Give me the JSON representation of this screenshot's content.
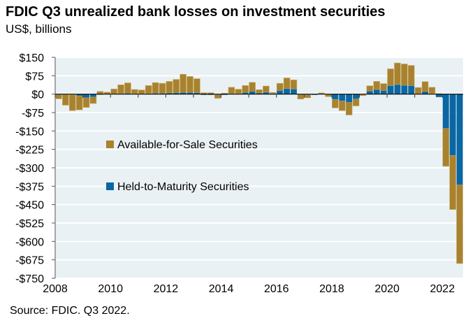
{
  "chart_data": {
    "type": "bar",
    "stacked": true,
    "title": "FDIC Q3 unrealized bank losses on investment securities",
    "subtitle": "US$, billions",
    "source": "Source: FDIC. Q3 2022.",
    "xlabel": "",
    "ylabel": "",
    "ylim": [
      -750,
      150
    ],
    "yticks": [
      150,
      75,
      0,
      -75,
      -150,
      -225,
      -300,
      -375,
      -450,
      -525,
      -600,
      -675,
      -750
    ],
    "ytick_labels": [
      "$150",
      "$75",
      "$0",
      "-$75",
      "-$150",
      "-$225",
      "-$300",
      "-$375",
      "-$450",
      "-$525",
      "-$600",
      "-$675",
      "-$750"
    ],
    "xtick_labels": [
      "2008",
      "2010",
      "2012",
      "2014",
      "2016",
      "2018",
      "2020",
      "2022"
    ],
    "x_start": "2008 Q1",
    "frequency": "quarterly",
    "grid": true,
    "legend": "middle-left",
    "colors": {
      "afs": "#a8822f",
      "htm": "#0a67a3",
      "background": "#e9f1f4"
    },
    "series": [
      {
        "name": "Available-for-Sale Securities",
        "key": "afs",
        "values": [
          -16,
          -44,
          -65,
          -57,
          -39,
          -26,
          11,
          8,
          20,
          36,
          42,
          17,
          16,
          32,
          43,
          40,
          47,
          54,
          74,
          65,
          57,
          6,
          6,
          -14,
          4,
          26,
          18,
          28,
          36,
          13,
          25,
          4,
          29,
          43,
          37,
          -17,
          -12,
          0,
          5,
          -7,
          -34,
          -39,
          -51,
          -28,
          -4,
          21,
          33,
          28,
          68,
          88,
          87,
          82,
          27,
          40,
          26,
          2,
          -154,
          -220,
          -320
        ]
      },
      {
        "name": "Held-to-Maturity Securities",
        "key": "htm",
        "values": [
          -3,
          -1,
          -2,
          -7,
          -15,
          -12,
          -2,
          0,
          1,
          2,
          4,
          2,
          1,
          3,
          4,
          4,
          5,
          6,
          7,
          7,
          6,
          -3,
          -3,
          -3,
          -3,
          2,
          2,
          7,
          12,
          5,
          8,
          3,
          15,
          23,
          21,
          -3,
          -3,
          -3,
          0,
          -3,
          -22,
          -28,
          -34,
          -20,
          -2,
          13,
          19,
          15,
          35,
          39,
          36,
          35,
          0,
          11,
          2,
          -12,
          -140,
          -250,
          -370
        ]
      }
    ]
  }
}
